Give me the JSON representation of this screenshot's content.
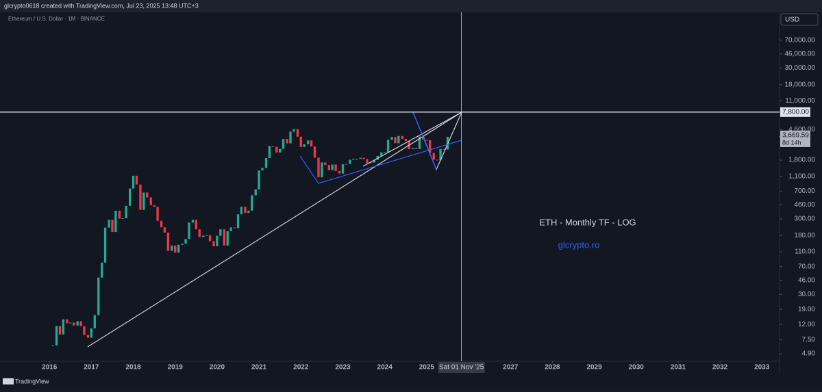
{
  "header": {
    "caption": "glcrypto0618 created with TradingView.com, Jul 23, 2025 13:48 UTC+3",
    "footer": "TradingView"
  },
  "chart_data": {
    "type": "candlestick",
    "symbol": "Ethereum / U.S. Dollar · 1M · BINANCE",
    "currency": "USD",
    "annotations": [
      "ETH - Monthly TF - LOG",
      "glcrypto.ro"
    ],
    "log_scale": true,
    "up_color": "#22ab94",
    "down_color": "#f23645",
    "xlim": [
      2014.82,
      2033.42
    ],
    "xticks": [
      2016,
      2017,
      2018,
      2019,
      2020,
      2021,
      2022,
      2023,
      2024,
      2025,
      2027,
      2028,
      2029,
      2030,
      2031,
      2032,
      2033
    ],
    "crosshair": {
      "value": 2025.83,
      "label": "Sat 01 Nov '25"
    },
    "ylim": [
      3.9,
      163600
    ],
    "yticks": [
      {
        "value": 4.9,
        "label": "4.90"
      },
      {
        "value": 7.5,
        "label": "7.50"
      },
      {
        "value": 12,
        "label": "12.00"
      },
      {
        "value": 19,
        "label": "19.00"
      },
      {
        "value": 30,
        "label": "30.00"
      },
      {
        "value": 46,
        "label": "46.00"
      },
      {
        "value": 70,
        "label": "70.00"
      },
      {
        "value": 110,
        "label": "110.00"
      },
      {
        "value": 180,
        "label": "180.00"
      },
      {
        "value": 300,
        "label": "300.00"
      },
      {
        "value": 460,
        "label": "460.00"
      },
      {
        "value": 700,
        "label": "700.00"
      },
      {
        "value": 1100,
        "label": "1,100.00"
      },
      {
        "value": 1800,
        "label": "1,800.00"
      },
      {
        "value": 4600,
        "label": "4,600.00"
      },
      {
        "value": 11000,
        "label": "11,000.00"
      },
      {
        "value": 18000,
        "label": "18,000.00"
      },
      {
        "value": 30000,
        "label": "30,000.00"
      },
      {
        "value": 46000,
        "label": "46,000.00"
      },
      {
        "value": 70000,
        "label": "70,000.00"
      }
    ],
    "hline": {
      "value": 7800,
      "label": "7,800.00"
    },
    "current_price": {
      "value": 3669.59,
      "label": "3,669.59",
      "countdown": "8d 14h"
    },
    "series": [
      {
        "name": "ETHUSD",
        "x": [
          2016.08,
          2016.17,
          2016.25,
          2016.33,
          2016.42,
          2016.5,
          2016.58,
          2016.67,
          2016.75,
          2016.83,
          2016.92,
          2017,
          2017.08,
          2017.17,
          2017.25,
          2017.33,
          2017.42,
          2017.5,
          2017.58,
          2017.67,
          2017.75,
          2017.83,
          2017.92,
          2018,
          2018.08,
          2018.17,
          2018.25,
          2018.33,
          2018.42,
          2018.5,
          2018.58,
          2018.67,
          2018.75,
          2018.83,
          2018.92,
          2019,
          2019.08,
          2019.17,
          2019.25,
          2019.33,
          2019.42,
          2019.5,
          2019.58,
          2019.67,
          2019.75,
          2019.83,
          2019.92,
          2020,
          2020.08,
          2020.17,
          2020.25,
          2020.33,
          2020.42,
          2020.5,
          2020.58,
          2020.67,
          2020.75,
          2020.83,
          2020.92,
          2021,
          2021.08,
          2021.17,
          2021.25,
          2021.33,
          2021.42,
          2021.5,
          2021.58,
          2021.67,
          2021.75,
          2021.83,
          2021.92,
          2022,
          2022.08,
          2022.17,
          2022.25,
          2022.33,
          2022.42,
          2022.5,
          2022.58,
          2022.67,
          2022.75,
          2022.83,
          2022.92,
          2023,
          2023.08,
          2023.17,
          2023.25,
          2023.33,
          2023.42,
          2023.5,
          2023.58,
          2023.67,
          2023.75,
          2023.83,
          2023.92,
          2024,
          2024.08,
          2024.17,
          2024.25,
          2024.33,
          2024.42,
          2024.5,
          2024.58,
          2024.67,
          2024.75,
          2024.83,
          2024.92,
          2025,
          2025.08,
          2025.17,
          2025.25,
          2025.33,
          2025.42,
          2025.5
        ],
        "values": [
          6.3,
          11.4,
          8.8,
          14,
          12.4,
          12.7,
          11.6,
          13.2,
          11.3,
          8.7,
          8,
          10.6,
          15.9,
          50,
          79,
          230,
          292,
          201,
          385,
          302,
          305,
          447,
          756,
          1118,
          856,
          395,
          670,
          577,
          455,
          433,
          283,
          232,
          197,
          113,
          133,
          107,
          136,
          141,
          162,
          268,
          291,
          218,
          172,
          180,
          182,
          152,
          130,
          179,
          218,
          133,
          206,
          231,
          226,
          345,
          434,
          359,
          386,
          615,
          737,
          1314,
          1417,
          1918,
          2773,
          2708,
          2274,
          2536,
          3433,
          3001,
          4288,
          4631,
          3683,
          2688,
          2920,
          3282,
          2727,
          1943,
          1067,
          1679,
          1554,
          1328,
          1572,
          1295,
          1196,
          1585,
          1605,
          1822,
          1869,
          1874,
          1934,
          1857,
          1645,
          1671,
          1816,
          2052,
          2282,
          2283,
          3340,
          3647,
          3014,
          3762,
          3441,
          3232,
          2513,
          2602,
          2518,
          3705,
          3332,
          3300,
          2237,
          1822,
          1793,
          2528,
          2486,
          3669.59
        ]
      }
    ]
  }
}
